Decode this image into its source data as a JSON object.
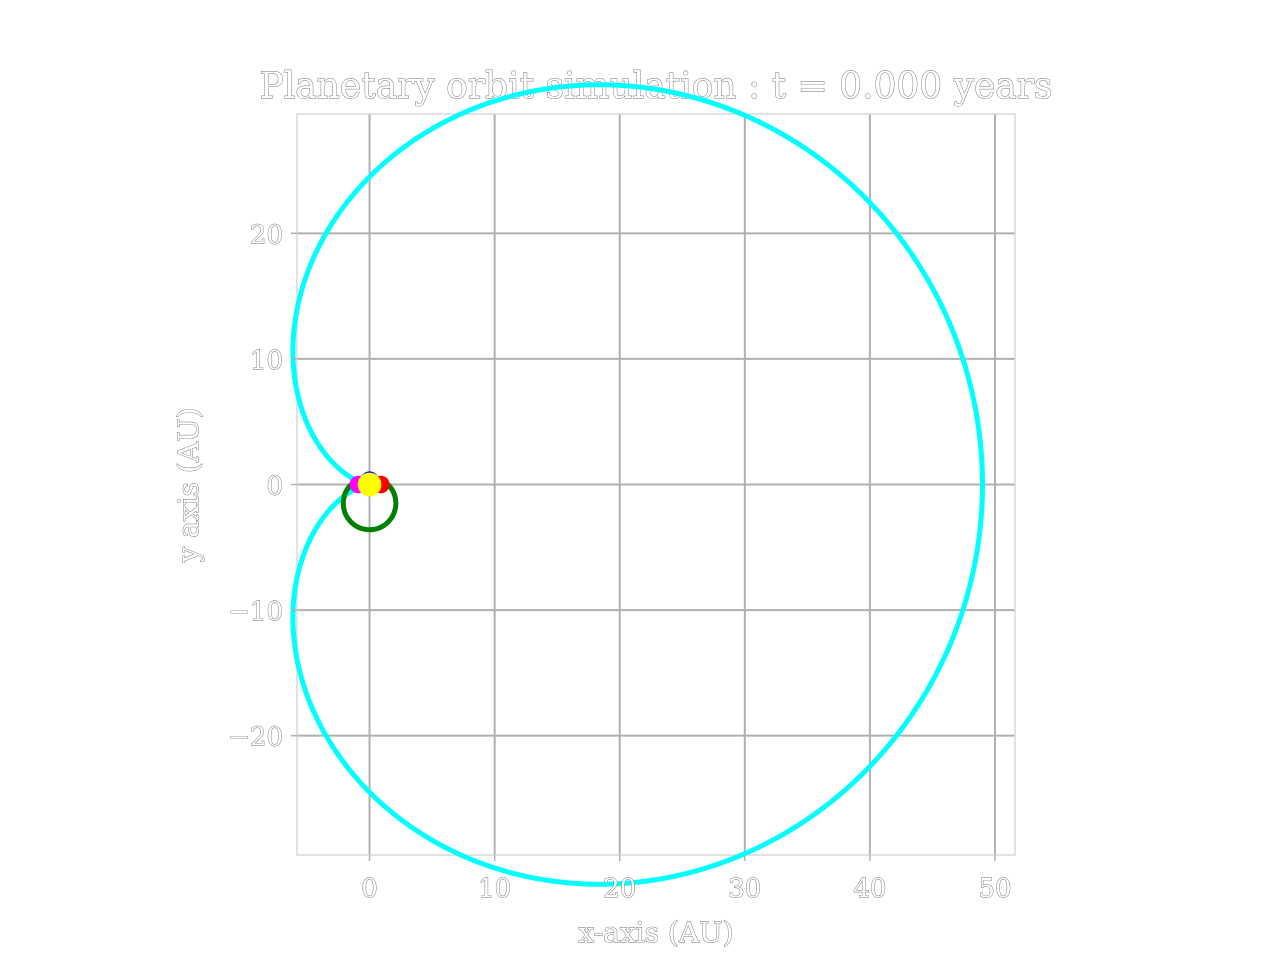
{
  "chart_data": {
    "type": "line",
    "title": "Planetary orbit simulation : t = 0.000 years",
    "xlabel": "x-axis (AU)",
    "ylabel": "y axis (AU)",
    "xlim": [
      -5.8,
      51.6
    ],
    "ylim": [
      -29.5,
      29.5
    ],
    "xticks": [
      0,
      10,
      20,
      30,
      40,
      50
    ],
    "xtick_labels": [
      "0",
      "10",
      "20",
      "30",
      "40",
      "50"
    ],
    "yticks": [
      -20,
      -10,
      0,
      10,
      20
    ],
    "ytick_labels": [
      "−20",
      "−10",
      "0",
      "10",
      "20"
    ],
    "grid": true,
    "orbits": [
      {
        "color": "#00ffff",
        "shape": "cardioid",
        "a": 24.5,
        "rightmost_x": 49.0,
        "top_y": 26.9
      },
      {
        "color": "#008000",
        "shape": "circle",
        "cx": 0.0,
        "cy": -1.5,
        "r": 2.1
      }
    ],
    "bodies": [
      {
        "color": "#0000ff",
        "x": 0.0,
        "y": 0.3,
        "r": 0.75
      },
      {
        "color": "#ff0000",
        "x": 0.9,
        "y": 0.0,
        "r": 0.7
      },
      {
        "color": "#ff00ff",
        "x": -0.9,
        "y": 0.0,
        "r": 0.7
      },
      {
        "color": "#ffff00",
        "x": 0.0,
        "y": 0.0,
        "r": 0.95
      }
    ]
  }
}
